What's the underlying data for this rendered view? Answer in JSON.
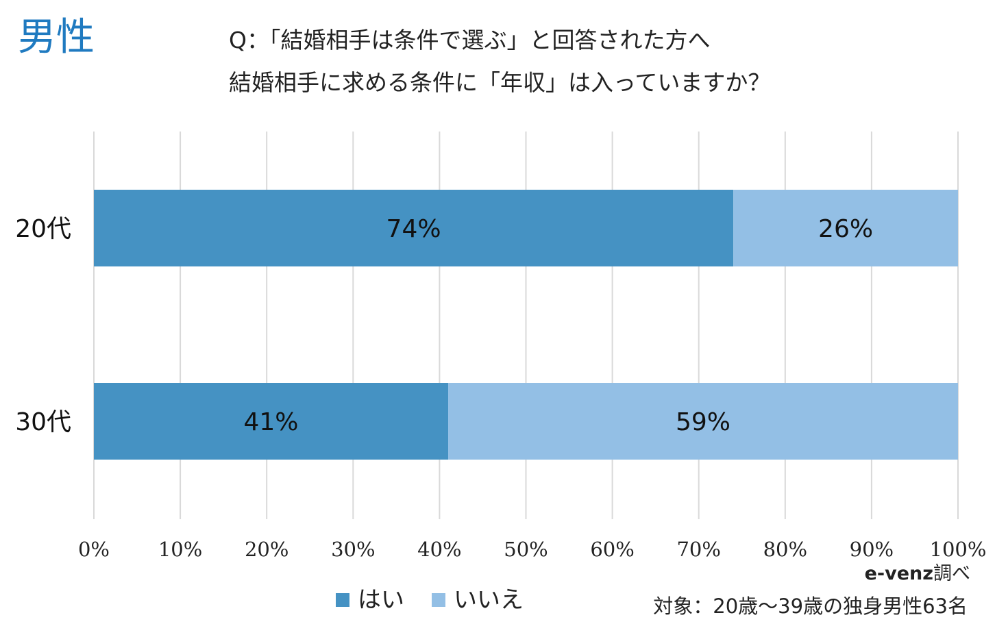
{
  "gender_title": "男性",
  "question": {
    "line1": "Q：「結婚相手は条件で選ぶ」と回答された方へ",
    "line2": "結婚相手に求める条件に「年収」は入っていますか？"
  },
  "credit": {
    "brand": "e-venz",
    "suffix": "調べ"
  },
  "target": "対象：20歳〜39歳の独身男性63名",
  "colors": {
    "yes": "#4592c3",
    "no": "#93bfe5",
    "grid": "#d9d9d9",
    "title": "#1f7ac0"
  },
  "chart_data": {
    "type": "bar",
    "orientation": "horizontal",
    "stacked": true,
    "categories": [
      "20代",
      "30代"
    ],
    "series": [
      {
        "name": "はい",
        "values": [
          74,
          41
        ],
        "labels": [
          "74%",
          "41%"
        ]
      },
      {
        "name": "いいえ",
        "values": [
          26,
          59
        ],
        "labels": [
          "26%",
          "59%"
        ]
      }
    ],
    "xlim": [
      0,
      100
    ],
    "x_ticks": [
      "0%",
      "10%",
      "20%",
      "30%",
      "40%",
      "50%",
      "60%",
      "70%",
      "80%",
      "90%",
      "100%"
    ],
    "grid": true,
    "legend_position": "bottom"
  }
}
